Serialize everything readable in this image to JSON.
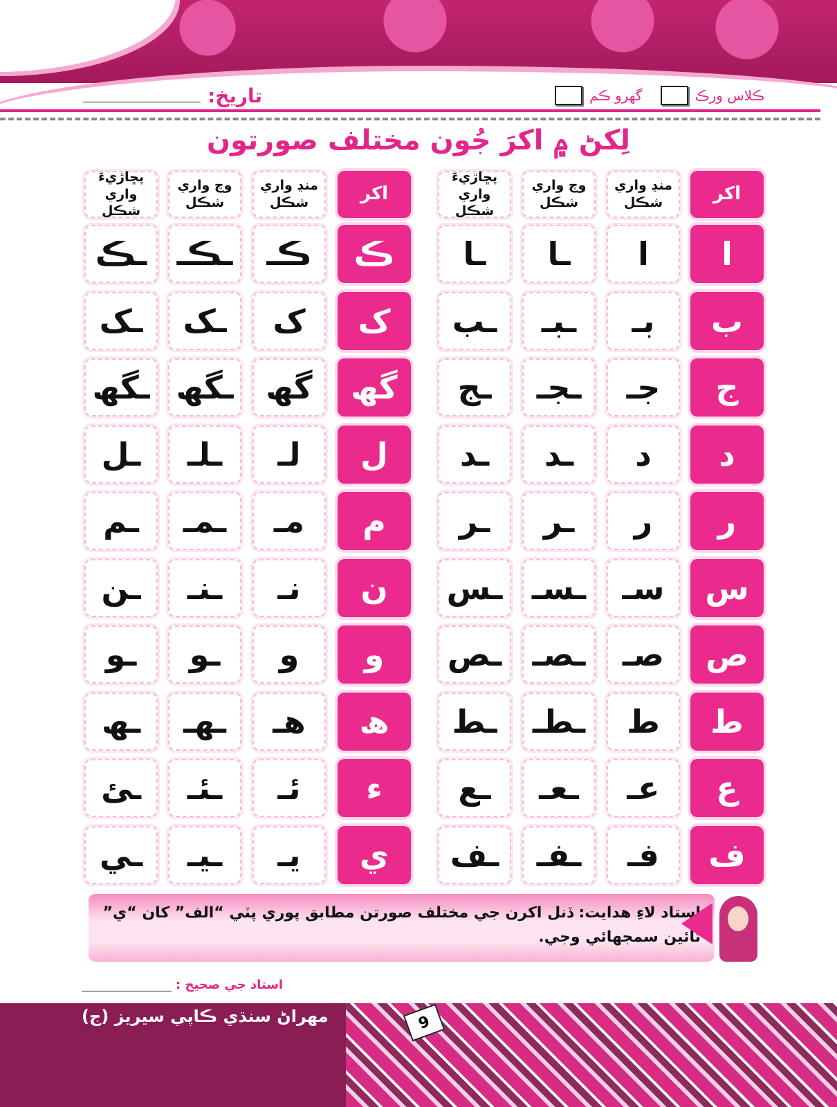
{
  "header": {
    "class_work": "ڪلاس ورڪ",
    "home_work": "گھرو ڪم",
    "date_label": "تاريخ:"
  },
  "title": "لِکڻ ۾ اکرَ جُون مختلف صورتون",
  "columns": [
    "اکر",
    "منڍ واري شڪل",
    "وچ واري شڪل",
    "پڇاڙيءَ واري شڪل"
  ],
  "right_table": [
    [
      "ا",
      "ا",
      "ـا",
      "ـا"
    ],
    [
      "ب",
      "بـ",
      "ـبـ",
      "ـب"
    ],
    [
      "ج",
      "جـ",
      "ـجـ",
      "ـج"
    ],
    [
      "د",
      "د",
      "ـد",
      "ـد"
    ],
    [
      "ر",
      "ر",
      "ـر",
      "ـر"
    ],
    [
      "س",
      "سـ",
      "ـسـ",
      "ـس"
    ],
    [
      "ص",
      "صـ",
      "ـصـ",
      "ـص"
    ],
    [
      "ط",
      "ط",
      "ـطـ",
      "ـط"
    ],
    [
      "ع",
      "عـ",
      "ـعـ",
      "ـع"
    ],
    [
      "ف",
      "فـ",
      "ـفـ",
      "ـف"
    ]
  ],
  "left_table": [
    [
      "ڪ",
      "ڪـ",
      "ـڪـ",
      "ـڪ"
    ],
    [
      "ک",
      "ک",
      "ـک",
      "ـک"
    ],
    [
      "گھ",
      "گھ",
      "ـگھ",
      "ـگھ"
    ],
    [
      "ل",
      "لـ",
      "ـلـ",
      "ـل"
    ],
    [
      "م",
      "مـ",
      "ـمـ",
      "ـم"
    ],
    [
      "ن",
      "نـ",
      "ـنـ",
      "ـن"
    ],
    [
      "و",
      "و",
      "ـو",
      "ـو"
    ],
    [
      "ھ",
      "ھـ",
      "ـھـ",
      "ـھ"
    ],
    [
      "ء",
      "ئـ",
      "ـئـ",
      "ـئ"
    ],
    [
      "ي",
      "يـ",
      "ـيـ",
      "ـي"
    ]
  ],
  "note": {
    "label": "استاد لاءِ هدايت:",
    "text": "ڏنل اکرن جي مختلف صورتن مطابق پوري پٽي “الف” کان “ي” تائين سمجهائي وجي."
  },
  "signature_label": "استاد جي صحيح :",
  "footer": {
    "brand": "مهراڻ سنڌي ڪاپي سيريز (ج)",
    "page_number": "9"
  },
  "colors": {
    "accent": "#ea2a8c",
    "footer": "#8b1d55"
  }
}
